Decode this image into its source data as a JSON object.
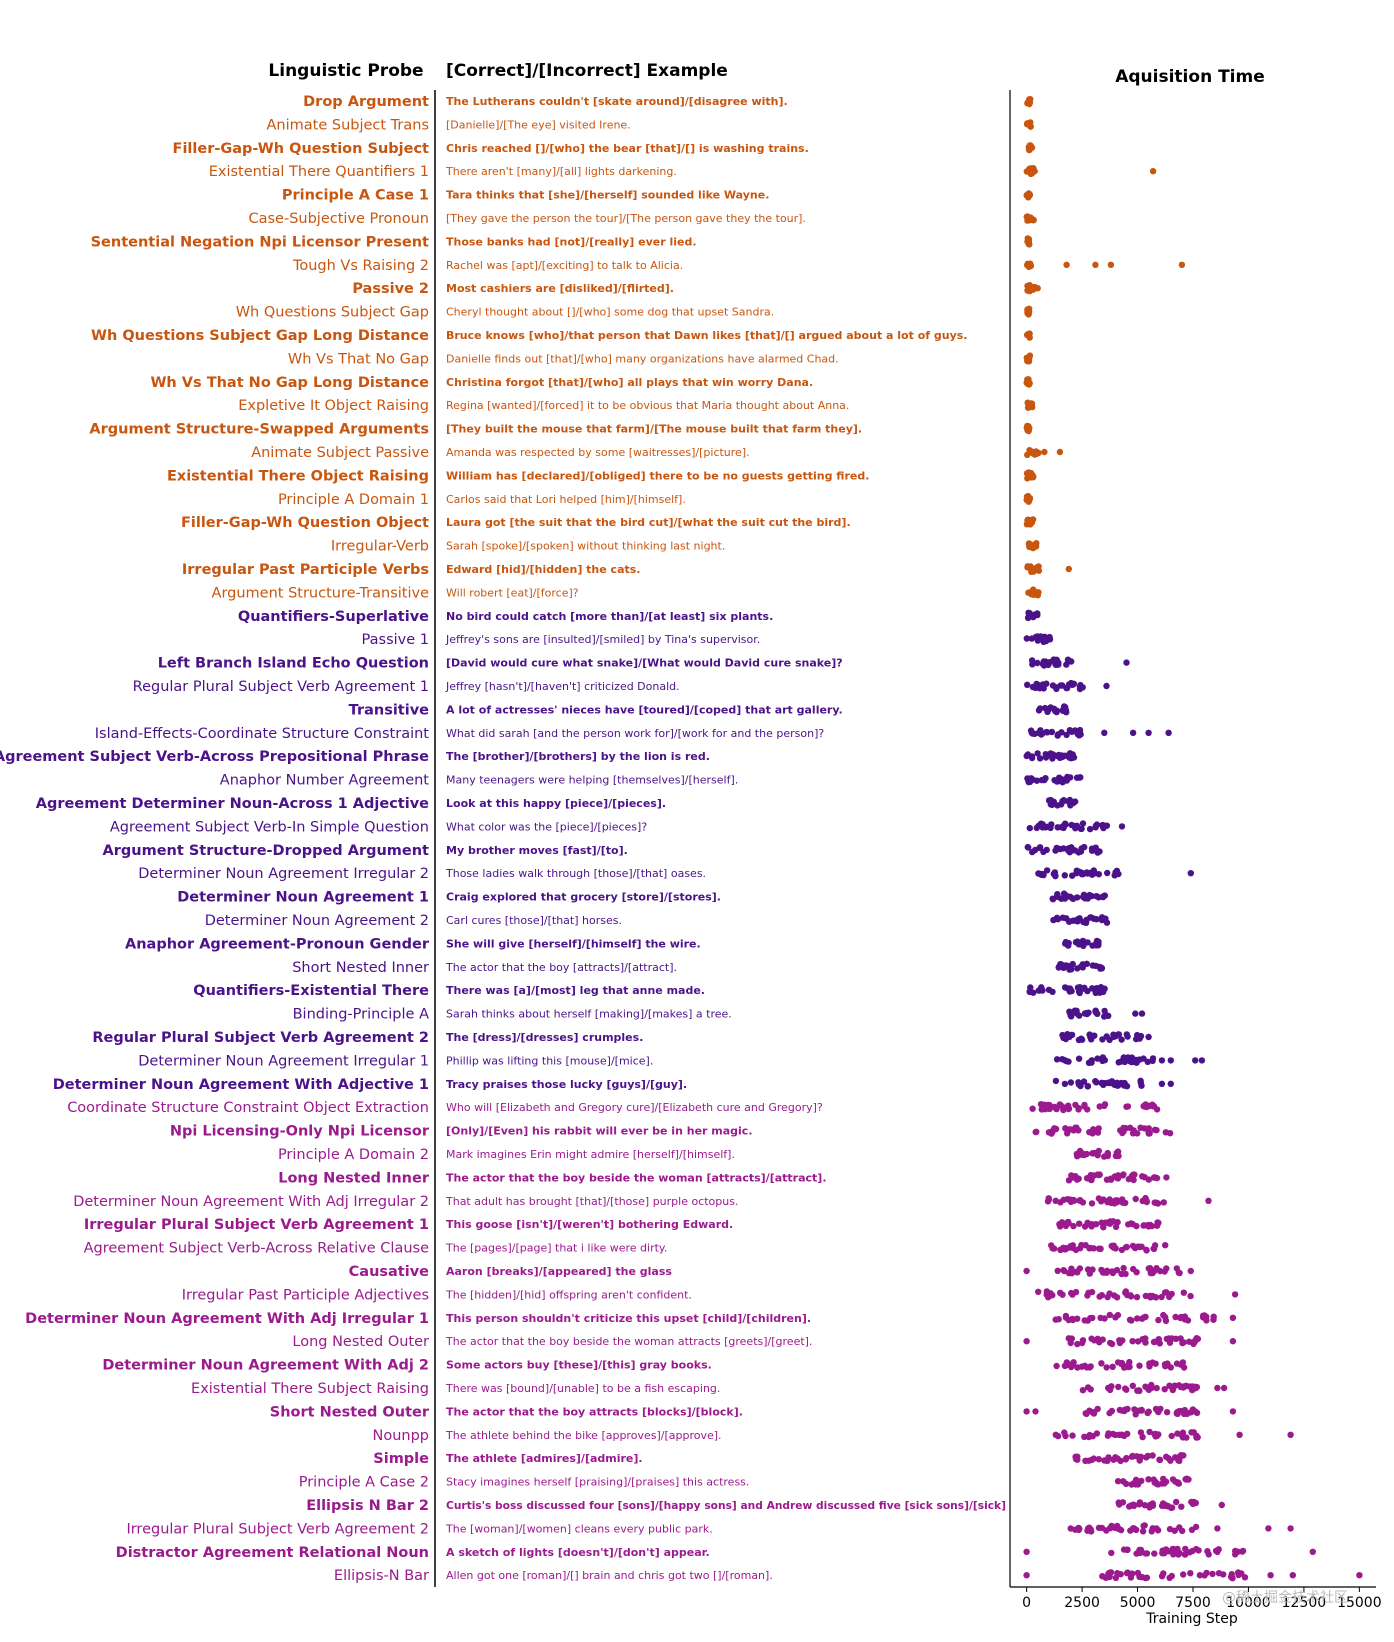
{
  "chart_data": {
    "type": "scatter",
    "title": "Aquisition Time",
    "column_headers": {
      "probe": "Linguistic Probe",
      "example": "[Correct]/[Incorrect] Example"
    },
    "xlabel": "Training Step",
    "xlim": [
      -750,
      15750
    ],
    "xticks": [
      0,
      2500,
      5000,
      7500,
      10000,
      12500,
      15000
    ],
    "xtick_labels": [
      "0",
      "2500",
      "5000",
      "7500",
      "10000",
      "12500",
      "15000"
    ],
    "colors": {
      "orange": "#c8560f",
      "indigo": "#4b1289",
      "magenta": "#9b1a8e"
    },
    "rows": [
      {
        "probe": "Drop Argument",
        "example": "The Lutherans couldn't [skate around]/[disagree with].",
        "bold": true,
        "color": "orange",
        "dist": [
          0,
          200
        ],
        "outliers": []
      },
      {
        "probe": "Animate Subject Trans",
        "example": "[Danielle]/[The eye] visited Irene.",
        "bold": false,
        "color": "orange",
        "dist": [
          0,
          200
        ],
        "outliers": []
      },
      {
        "probe": "Filler-Gap-Wh Question Subject",
        "example": "Chris reached []/[who] the bear [that]/[] is washing trains.",
        "bold": true,
        "color": "orange",
        "dist": [
          0,
          250
        ],
        "outliers": []
      },
      {
        "probe": "Existential There Quantifiers 1",
        "example": "There aren't [many]/[all] lights darkening.",
        "bold": false,
        "color": "orange",
        "dist": [
          0,
          450
        ],
        "outliers": [
          5700
        ]
      },
      {
        "probe": "Principle A Case 1",
        "example": "Tara thinks that [she]/[herself] sounded like Wayne.",
        "bold": true,
        "color": "orange",
        "dist": [
          0,
          150
        ],
        "outliers": []
      },
      {
        "probe": "Case-Subjective Pronoun",
        "example": "[They gave the person the tour]/[The person gave they the tour].",
        "bold": false,
        "color": "orange",
        "dist": [
          0,
          450
        ],
        "outliers": []
      },
      {
        "probe": "Sentential Negation Npi Licensor Present",
        "example": "Those banks had [not]/[really] ever lied.",
        "bold": true,
        "color": "orange",
        "dist": [
          0,
          150
        ],
        "outliers": []
      },
      {
        "probe": "Tough Vs Raising 2",
        "example": "Rachel was [apt]/[exciting] to talk to Alicia.",
        "bold": false,
        "color": "orange",
        "dist": [
          0,
          200
        ],
        "outliers": [
          1800,
          3100,
          3800,
          7000
        ]
      },
      {
        "probe": "Passive 2",
        "example": "Most cashiers are [disliked]/[flirted].",
        "bold": true,
        "color": "orange",
        "dist": [
          0,
          400
        ],
        "outliers": [
          500
        ]
      },
      {
        "probe": "Wh Questions Subject Gap",
        "example": "Cheryl thought about []/[who] some dog that upset Sandra.",
        "bold": false,
        "color": "orange",
        "dist": [
          0,
          150
        ],
        "outliers": []
      },
      {
        "probe": "Wh Questions Subject Gap Long Distance",
        "example": "Bruce knows [who]/that person that Dawn likes [that]/[] argued about a lot of guys.",
        "bold": true,
        "color": "orange",
        "dist": [
          0,
          150
        ],
        "outliers": []
      },
      {
        "probe": "Wh Vs That No Gap",
        "example": "Danielle finds out [that]/[who] many organizations have alarmed Chad.",
        "bold": false,
        "color": "orange",
        "dist": [
          0,
          150
        ],
        "outliers": []
      },
      {
        "probe": "Wh Vs That No Gap Long Distance",
        "example": "Christina forgot [that]/[who] all plays that win worry Dana.",
        "bold": true,
        "color": "orange",
        "dist": [
          0,
          150
        ],
        "outliers": []
      },
      {
        "probe": "Expletive It Object Raising",
        "example": "Regina [wanted]/[forced] it to be obvious that Maria thought about Anna.",
        "bold": false,
        "color": "orange",
        "dist": [
          0,
          300
        ],
        "outliers": []
      },
      {
        "probe": "Argument Structure-Swapped Arguments",
        "example": "[They built the mouse that farm]/[The mouse built that farm they].",
        "bold": true,
        "color": "orange",
        "dist": [
          0,
          150
        ],
        "outliers": []
      },
      {
        "probe": "Animate Subject Passive",
        "example": "Amanda was respected by some [waitresses]/[picture].",
        "bold": false,
        "color": "orange",
        "dist": [
          0,
          550
        ],
        "outliers": [
          800,
          1500
        ]
      },
      {
        "probe": "Existential There Object Raising",
        "example": "William has [declared]/[obliged] there to be no guests getting fired.",
        "bold": true,
        "color": "orange",
        "dist": [
          0,
          300
        ],
        "outliers": []
      },
      {
        "probe": "Principle A Domain 1",
        "example": "Carlos said that Lori helped [him]/[himself].",
        "bold": false,
        "color": "orange",
        "dist": [
          0,
          150
        ],
        "outliers": []
      },
      {
        "probe": "Filler-Gap-Wh Question Object",
        "example": "Laura got [the suit that the bird cut]/[what the suit cut the bird].",
        "bold": true,
        "color": "orange",
        "dist": [
          0,
          400
        ],
        "outliers": []
      },
      {
        "probe": "Irregular-Verb",
        "example": "Sarah [spoke]/[spoken] without thinking last night.",
        "bold": false,
        "color": "orange",
        "dist": [
          100,
          500
        ],
        "outliers": []
      },
      {
        "probe": "Irregular Past Participle Verbs",
        "example": "Edward [hid]/[hidden] the cats.",
        "bold": true,
        "color": "orange",
        "dist": [
          0,
          600
        ],
        "outliers": [
          1900
        ]
      },
      {
        "probe": "Argument Structure-Transitive",
        "example": "Will robert [eat]/[force]?",
        "bold": false,
        "color": "orange",
        "dist": [
          0,
          550
        ],
        "outliers": []
      },
      {
        "probe": "Quantifiers-Superlative",
        "example": "No bird could catch [more than]/[at least] six plants.",
        "bold": true,
        "color": "indigo",
        "dist": [
          0,
          500
        ],
        "outliers": []
      },
      {
        "probe": "Passive 1",
        "example": "Jeffrey's sons are [insulted]/[smiled] by Tina's supervisor.",
        "bold": false,
        "color": "indigo",
        "dist": [
          0,
          1100
        ],
        "outliers": []
      },
      {
        "probe": "Left Branch Island Echo Question",
        "example": "[David would cure what snake]/[What would David cure snake]?",
        "bold": true,
        "color": "indigo",
        "dist": [
          100,
          2200
        ],
        "outliers": [
          4500
        ]
      },
      {
        "probe": "Regular Plural Subject Verb Agreement 1",
        "example": "Jeffrey [hasn't]/[haven't] criticized Donald.",
        "bold": false,
        "color": "indigo",
        "dist": [
          0,
          2700
        ],
        "outliers": [
          3600
        ]
      },
      {
        "probe": "Transitive",
        "example": "A lot of actresses' nieces have [toured]/[coped] that art gallery.",
        "bold": true,
        "color": "indigo",
        "dist": [
          300,
          1800
        ],
        "outliers": []
      },
      {
        "probe": "Island-Effects-Coordinate Structure Constraint",
        "example": "What did sarah [and the person work for]/[work for and the person]?",
        "bold": false,
        "color": "indigo",
        "dist": [
          0,
          2600
        ],
        "outliers": [
          3500,
          4800,
          5500,
          6400
        ]
      },
      {
        "probe": "Agreement Subject Verb-Across Prepositional Phrase",
        "example": "The [brother]/[brothers] by the lion is red.",
        "bold": true,
        "color": "indigo",
        "dist": [
          0,
          2200
        ],
        "outliers": []
      },
      {
        "probe": "Anaphor Number Agreement",
        "example": "Many teenagers were helping [themselves]/[herself].",
        "bold": false,
        "color": "indigo",
        "dist": [
          0,
          2700
        ],
        "outliers": []
      },
      {
        "probe": "Agreement Determiner Noun-Across 1 Adjective",
        "example": "Look at this happy [piece]/[pieces].",
        "bold": true,
        "color": "indigo",
        "dist": [
          1000,
          2300
        ],
        "outliers": []
      },
      {
        "probe": "Agreement Subject Verb-In Simple Question",
        "example": "What color was the [piece]/[pieces]?",
        "bold": false,
        "color": "indigo",
        "dist": [
          0,
          3700
        ],
        "outliers": [
          4300
        ]
      },
      {
        "probe": "Argument Structure-Dropped Argument",
        "example": "My brother moves [fast]/[to].",
        "bold": true,
        "color": "indigo",
        "dist": [
          0,
          3300
        ],
        "outliers": []
      },
      {
        "probe": "Determiner Noun Agreement Irregular 2",
        "example": "Those ladies walk through [those]/[that] oases.",
        "bold": false,
        "color": "indigo",
        "dist": [
          500,
          4300
        ],
        "outliers": [
          7400
        ]
      },
      {
        "probe": "Determiner Noun Agreement 1",
        "example": "Craig explored that grocery [store]/[stores].",
        "bold": true,
        "color": "indigo",
        "dist": [
          1100,
          3700
        ],
        "outliers": []
      },
      {
        "probe": "Determiner Noun Agreement 2",
        "example": "Carl cures [those]/[that] horses.",
        "bold": false,
        "color": "indigo",
        "dist": [
          1200,
          3700
        ],
        "outliers": []
      },
      {
        "probe": "Anaphor Agreement-Pronoun Gender",
        "example": "She will give [herself]/[himself] the wire.",
        "bold": true,
        "color": "indigo",
        "dist": [
          1600,
          3300
        ],
        "outliers": []
      },
      {
        "probe": "Short Nested Inner",
        "example": "The actor that the boy [attracts]/[attract].",
        "bold": false,
        "color": "indigo",
        "dist": [
          1400,
          3500
        ],
        "outliers": []
      },
      {
        "probe": "Quantifiers-Existential There",
        "example": "There was [a]/[most] leg that anne made.",
        "bold": true,
        "color": "indigo",
        "dist": [
          0,
          3800
        ],
        "outliers": []
      },
      {
        "probe": "Binding-Principle A",
        "example": "Sarah thinks about herself [making]/[makes] a tree.",
        "bold": false,
        "color": "indigo",
        "dist": [
          1900,
          3800
        ],
        "outliers": [
          4900,
          5200
        ]
      },
      {
        "probe": "Regular Plural Subject Verb Agreement 2",
        "example": "The [dress]/[dresses] crumples.",
        "bold": true,
        "color": "indigo",
        "dist": [
          1300,
          5200
        ],
        "outliers": [
          5500
        ]
      },
      {
        "probe": "Determiner Noun Agreement Irregular 1",
        "example": "Phillip was lifting this [mouse]/[mice].",
        "bold": false,
        "color": "indigo",
        "dist": [
          1300,
          5700
        ],
        "outliers": [
          6100,
          6500,
          7600,
          7900
        ]
      },
      {
        "probe": "Determiner Noun Agreement With Adjective 1",
        "example": "Tracy praises those lucky [guys]/[guy].",
        "bold": true,
        "color": "indigo",
        "dist": [
          1300,
          5200
        ],
        "outliers": [
          6100,
          6500
        ]
      },
      {
        "probe": "Coordinate Structure Constraint Object Extraction",
        "example": "Who will [Elizabeth and Gregory cure]/[Elizabeth cure and Gregory]?",
        "bold": false,
        "color": "magenta",
        "dist": [
          0,
          6000
        ],
        "outliers": []
      },
      {
        "probe": "Npi Licensing-Only Npi Licensor",
        "example": "[Only]/[Even] his rabbit will ever be in her magic.",
        "bold": true,
        "color": "magenta",
        "dist": [
          0,
          6700
        ],
        "outliers": []
      },
      {
        "probe": "Principle A Domain 2",
        "example": "Mark imagines Erin might admire [herself]/[himself].",
        "bold": false,
        "color": "magenta",
        "dist": [
          2200,
          4200
        ],
        "outliers": []
      },
      {
        "probe": "Long Nested Inner",
        "example": "The actor that the boy beside the woman [attracts]/[attract].",
        "bold": true,
        "color": "magenta",
        "dist": [
          1700,
          6000
        ],
        "outliers": [
          6300
        ]
      },
      {
        "probe": "Determiner Noun Agreement With Adj Irregular 2",
        "example": "That adult has brought [that]/[those] purple octopus.",
        "bold": false,
        "color": "magenta",
        "dist": [
          900,
          6300
        ],
        "outliers": [
          8200
        ]
      },
      {
        "probe": "Irregular Plural Subject Verb Agreement 1",
        "example": "This goose [isn't]/[weren't] bothering Edward.",
        "bold": true,
        "color": "magenta",
        "dist": [
          1400,
          6000
        ],
        "outliers": []
      },
      {
        "probe": "Agreement Subject Verb-Across Relative Clause",
        "example": "The [pages]/[page] that i like were dirty.",
        "bold": false,
        "color": "magenta",
        "dist": [
          1100,
          6300
        ],
        "outliers": []
      },
      {
        "probe": "Causative",
        "example": "Aaron [breaks]/[appeared] the glass",
        "bold": true,
        "color": "magenta",
        "dist": [
          1400,
          7000
        ],
        "outliers": [
          0,
          7400
        ]
      },
      {
        "probe": "Irregular Past Participle Adjectives",
        "example": "The [hidden]/[hid] offspring aren't confident.",
        "bold": false,
        "color": "magenta",
        "dist": [
          500,
          7500
        ],
        "outliers": [
          9400
        ]
      },
      {
        "probe": "Determiner Noun Agreement With Adj Irregular 1",
        "example": "This person shouldn't criticize this upset [child]/[children].",
        "bold": true,
        "color": "magenta",
        "dist": [
          1200,
          8800
        ],
        "outliers": [
          9300
        ]
      },
      {
        "probe": "Long Nested Outer",
        "example": "The actor that the boy beside the woman attracts [greets]/[greet].",
        "bold": false,
        "color": "magenta",
        "dist": [
          1500,
          7800
        ],
        "outliers": [
          0,
          9300
        ]
      },
      {
        "probe": "Determiner Noun Agreement With Adj 2",
        "example": "Some actors buy [these]/[this] gray books.",
        "bold": true,
        "color": "magenta",
        "dist": [
          1300,
          7300
        ],
        "outliers": []
      },
      {
        "probe": "Existential There Subject Raising",
        "example": "There was [bound]/[unable] to be a fish escaping.",
        "bold": false,
        "color": "magenta",
        "dist": [
          2400,
          7700
        ],
        "outliers": [
          8600,
          8900
        ]
      },
      {
        "probe": "Short Nested Outer",
        "example": "The actor that the boy attracts [blocks]/[block].",
        "bold": true,
        "color": "magenta",
        "dist": [
          2500,
          7800
        ],
        "outliers": [
          0,
          400,
          9300
        ]
      },
      {
        "probe": "Nounpp",
        "example": "The athlete behind the bike [approves]/[approve].",
        "bold": false,
        "color": "magenta",
        "dist": [
          1200,
          8000
        ],
        "outliers": [
          9600,
          11900
        ]
      },
      {
        "probe": "Simple",
        "example": "The athlete [admires]/[admire].",
        "bold": true,
        "color": "magenta",
        "dist": [
          2100,
          7100
        ],
        "outliers": []
      },
      {
        "probe": "Principle A Case 2",
        "example": "Stacy imagines herself [praising]/[praises] this actress.",
        "bold": false,
        "color": "magenta",
        "dist": [
          4100,
          7300
        ],
        "outliers": []
      },
      {
        "probe": "Ellipsis N Bar 2",
        "example": "Curtis's boss discussed four [sons]/[happy sons] and Andrew discussed five [sick sons]/[sick]",
        "bold": true,
        "color": "magenta",
        "dist": [
          4100,
          7700
        ],
        "outliers": [
          8800
        ]
      },
      {
        "probe": "Irregular Plural Subject Verb Agreement 2",
        "example": "The [woman]/[women] cleans every public park.",
        "bold": false,
        "color": "magenta",
        "dist": [
          1800,
          7800
        ],
        "outliers": [
          8600,
          10900,
          11900
        ]
      },
      {
        "probe": "Distractor Agreement Relational Noun",
        "example": "A sketch of lights [doesn't]/[don't] appear.",
        "bold": true,
        "color": "magenta",
        "dist": [
          3100,
          9900
        ],
        "outliers": [
          0,
          12900
        ]
      },
      {
        "probe": "Ellipsis-N Bar",
        "example": "Allen got one [roman]/[] brain and chris got two []/[roman].",
        "bold": false,
        "color": "magenta",
        "dist": [
          3400,
          10200
        ],
        "outliers": [
          0,
          11000,
          12000,
          15000
        ]
      }
    ]
  },
  "watermark": "@稀土掘金技术社区"
}
